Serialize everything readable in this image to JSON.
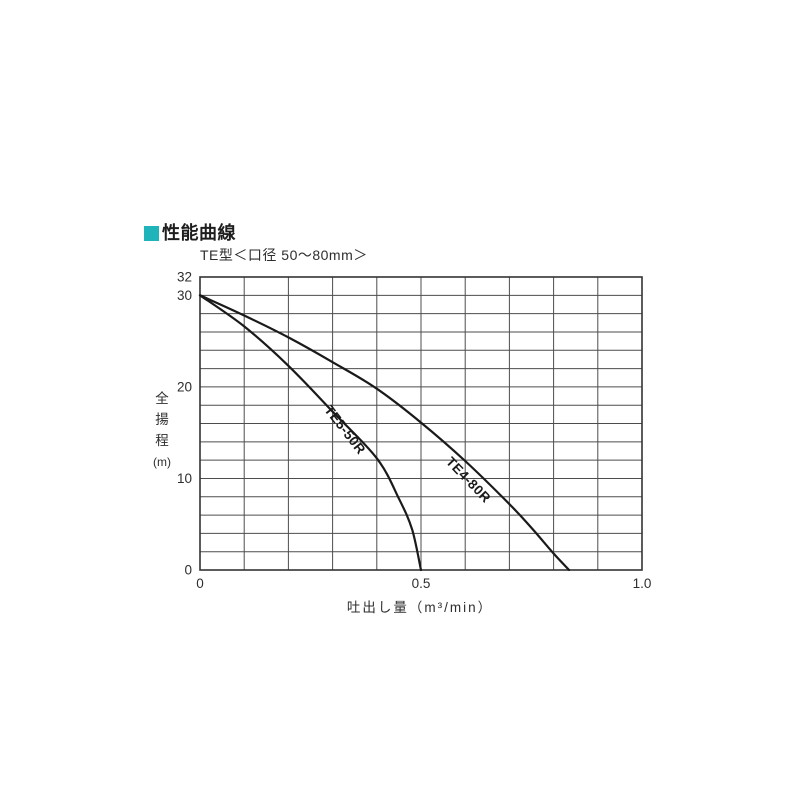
{
  "header": {
    "marker_color": "#1fb3ba",
    "title": "性能曲線"
  },
  "chart_data": {
    "type": "line",
    "title": "TE型＜口径 50～80mm＞",
    "xlabel": "吐出し量（m³/min）",
    "ylabel": "全揚程(m)",
    "ylabel_stack": [
      "全",
      "揚",
      "程",
      "(m)"
    ],
    "xlim": [
      0,
      1.0
    ],
    "ylim": [
      0,
      32
    ],
    "x_grid_step": 0.1,
    "y_grid_step": 2,
    "grid": true,
    "x_ticks": [
      {
        "v": 0,
        "label": "0"
      },
      {
        "v": 0.5,
        "label": "0.5"
      },
      {
        "v": 1.0,
        "label": "1.0"
      }
    ],
    "y_ticks": [
      {
        "v": 0,
        "label": "0"
      },
      {
        "v": 10,
        "label": "10"
      },
      {
        "v": 20,
        "label": "20"
      },
      {
        "v": 30,
        "label": "30"
      },
      {
        "v": 32,
        "label": "32"
      }
    ],
    "series": [
      {
        "name": "TE5-50R",
        "points": [
          [
            0,
            30
          ],
          [
            0.1,
            26.6
          ],
          [
            0.2,
            22.3
          ],
          [
            0.3,
            17.3
          ],
          [
            0.4,
            12.2
          ],
          [
            0.45,
            7.8
          ],
          [
            0.48,
            4.4
          ],
          [
            0.5,
            0
          ]
        ],
        "label_at": {
          "x": 0.32,
          "y": 15.0,
          "angle": 52
        }
      },
      {
        "name": "TE4-80R",
        "points": [
          [
            0,
            30
          ],
          [
            0.1,
            27.8
          ],
          [
            0.2,
            25.4
          ],
          [
            0.3,
            22.7
          ],
          [
            0.4,
            19.8
          ],
          [
            0.5,
            16.1
          ],
          [
            0.6,
            11.9
          ],
          [
            0.7,
            7.2
          ],
          [
            0.75,
            4.6
          ],
          [
            0.8,
            1.8
          ],
          [
            0.835,
            0
          ]
        ],
        "label_at": {
          "x": 0.6,
          "y": 9.5,
          "angle": 46
        }
      }
    ],
    "colors": {
      "curve": "#1a1a1a",
      "grid": "#4d4d4d",
      "border": "#333333",
      "text": "#2e2e2e"
    }
  }
}
